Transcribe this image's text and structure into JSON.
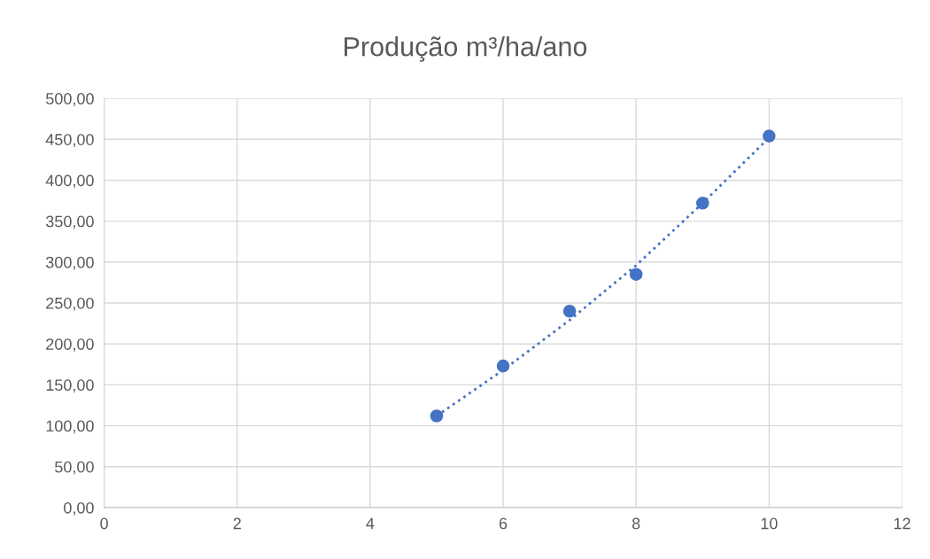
{
  "chart_data": {
    "type": "scatter",
    "title": "Produção m³/ha/ano",
    "series": [
      {
        "color": "#4472c4",
        "marker": "circle",
        "x": [
          5,
          6,
          7,
          8,
          9,
          10
        ],
        "values": [
          112,
          173,
          240,
          285,
          372,
          454
        ]
      },
      {
        "type": "line",
        "color": "#4472c4",
        "line_style": "dotted",
        "marker": "none",
        "x": [
          5,
          6,
          7,
          8,
          9,
          10
        ],
        "values": [
          112,
          168,
          229,
          296,
          372,
          452
        ]
      }
    ],
    "xlim": [
      0,
      12
    ],
    "xticks": [
      0,
      2,
      4,
      6,
      8,
      10,
      12
    ],
    "ylim": [
      0,
      500
    ],
    "yticks": [
      {
        "value": 0,
        "label": "0,00"
      },
      {
        "value": 50,
        "label": "50,00"
      },
      {
        "value": 100,
        "label": "100,00"
      },
      {
        "value": 150,
        "label": "150,00"
      },
      {
        "value": 200,
        "label": "200,00"
      },
      {
        "value": 250,
        "label": "250,00"
      },
      {
        "value": 300,
        "label": "300,00"
      },
      {
        "value": 350,
        "label": "350,00"
      },
      {
        "value": 400,
        "label": "400,00"
      },
      {
        "value": 450,
        "label": "450,00"
      },
      {
        "value": 500,
        "label": "500,00"
      }
    ],
    "grid": true
  }
}
